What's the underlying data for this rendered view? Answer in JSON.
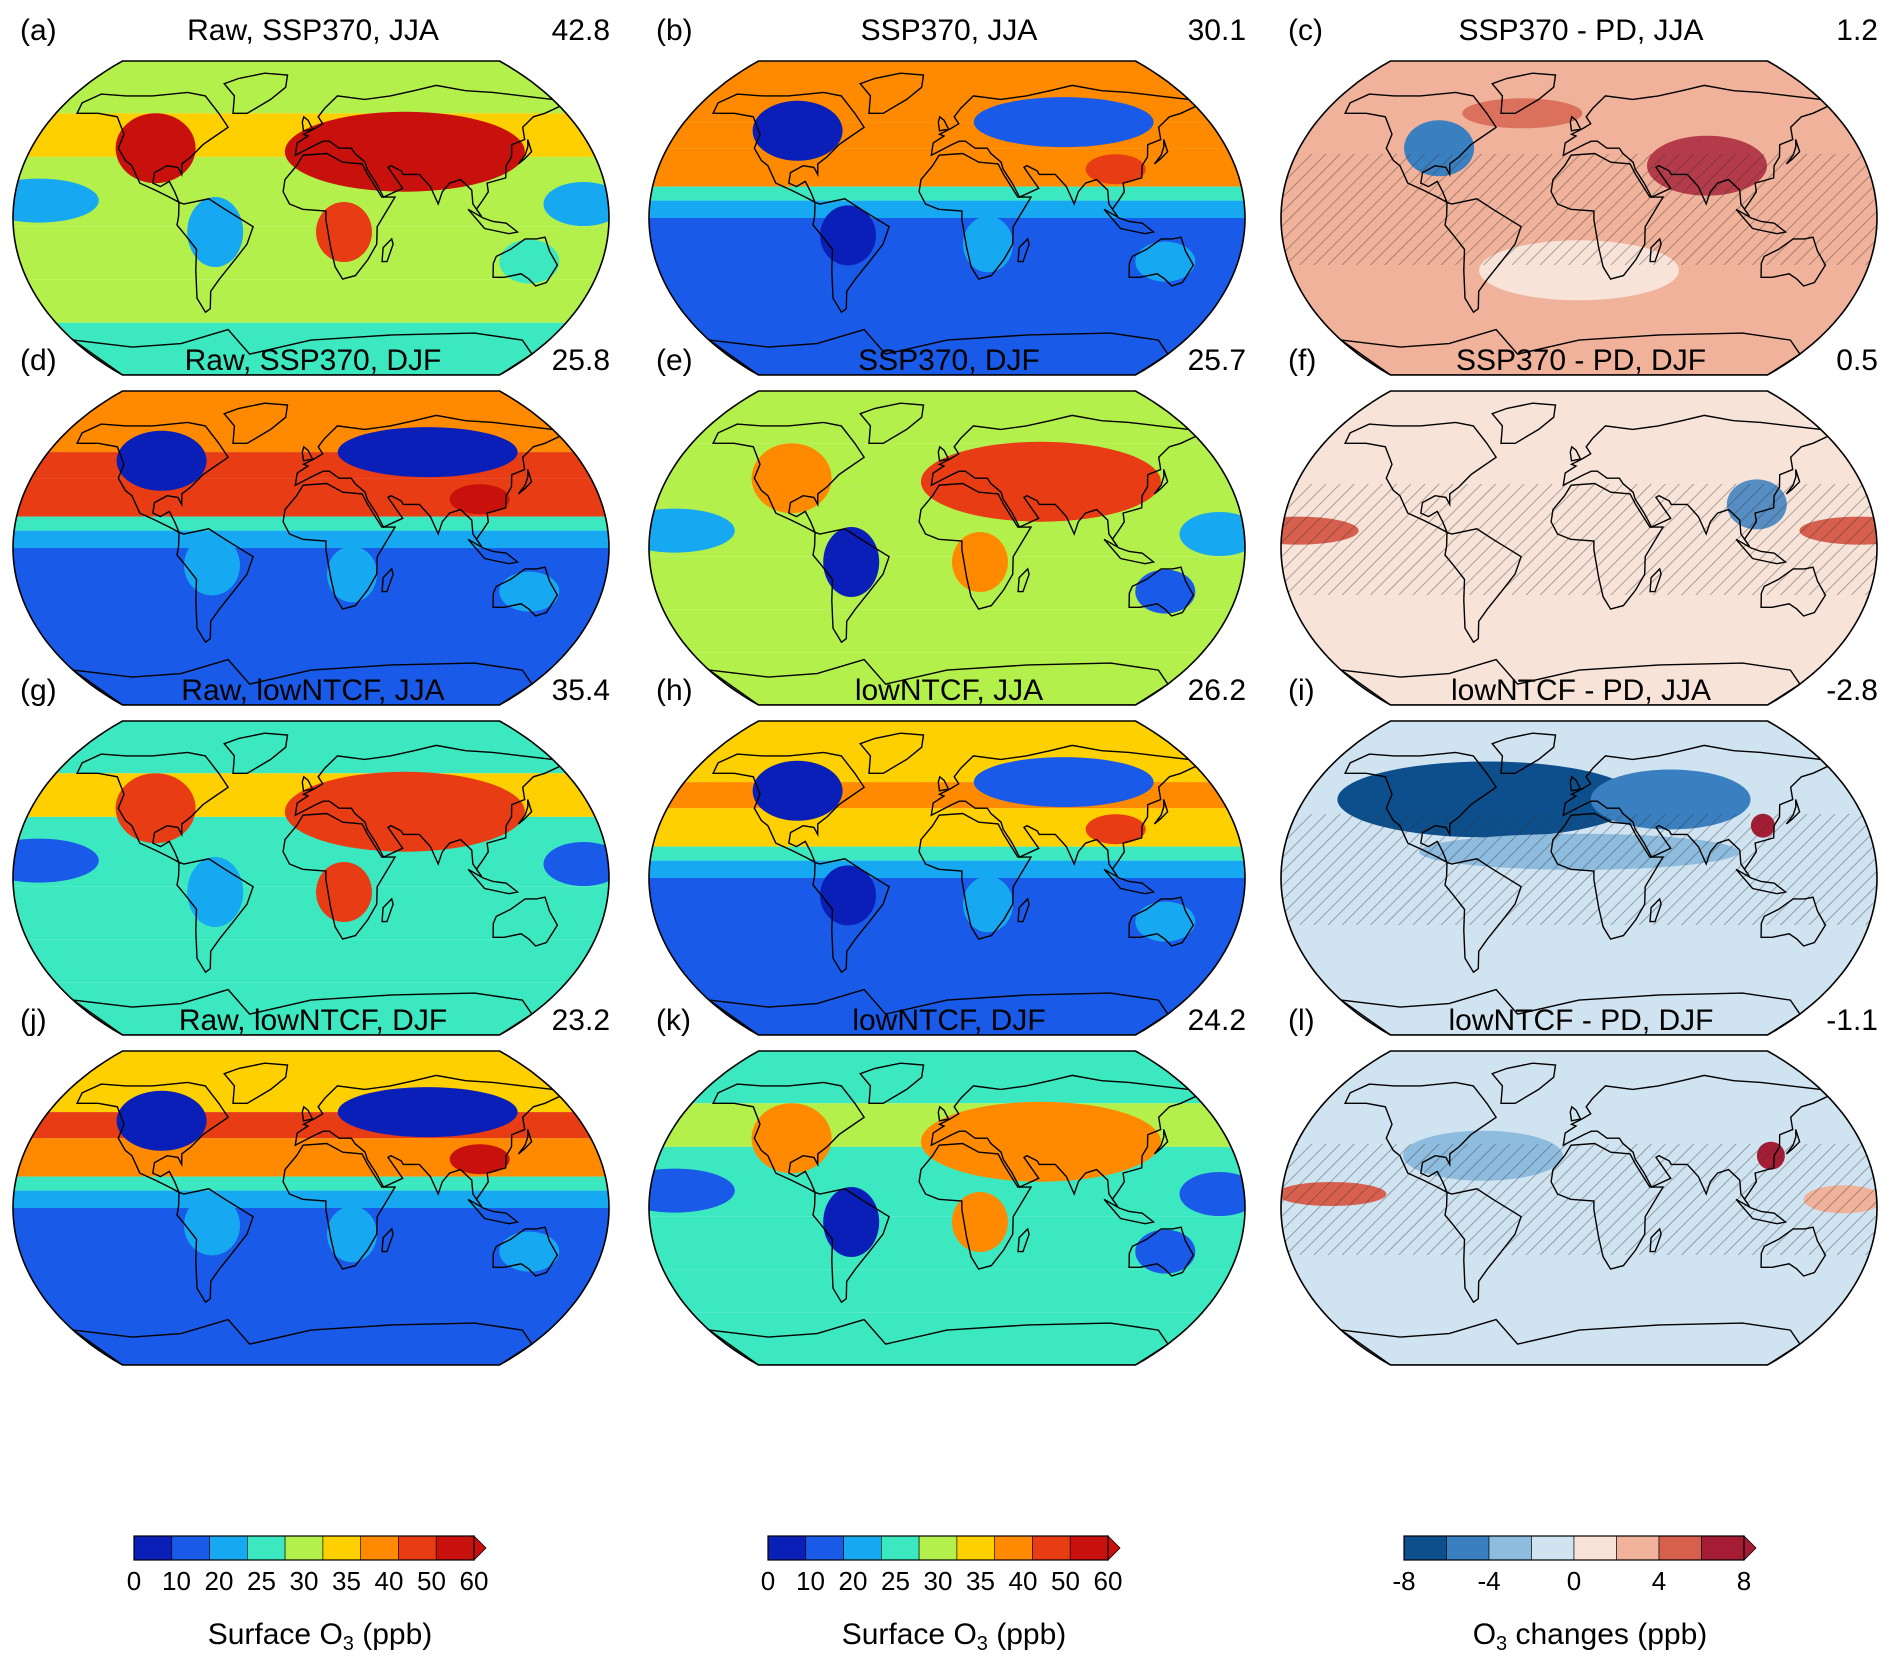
{
  "panels": [
    {
      "label": "(a)",
      "title": "Raw, SSP370, JJA",
      "mean": "42.8",
      "type": "abs"
    },
    {
      "label": "(b)",
      "title": "SSP370, JJA",
      "mean": "30.1",
      "type": "abs"
    },
    {
      "label": "(c)",
      "title": "SSP370 - PD, JJA",
      "mean": "1.2",
      "type": "diff"
    },
    {
      "label": "(d)",
      "title": "Raw, SSP370, DJF",
      "mean": "25.8",
      "type": "abs"
    },
    {
      "label": "(e)",
      "title": "SSP370, DJF",
      "mean": "25.7",
      "type": "abs"
    },
    {
      "label": "(f)",
      "title": "SSP370 - PD, DJF",
      "mean": "0.5",
      "type": "diff"
    },
    {
      "label": "(g)",
      "title": "Raw, lowNTCF, JJA",
      "mean": "35.4",
      "type": "abs"
    },
    {
      "label": "(h)",
      "title": "lowNTCF, JJA",
      "mean": "26.2",
      "type": "abs"
    },
    {
      "label": "(i)",
      "title": "lowNTCF - PD, JJA",
      "mean": "-2.8",
      "type": "diff"
    },
    {
      "label": "(j)",
      "title": "Raw, lowNTCF, DJF",
      "mean": "23.2",
      "type": "abs"
    },
    {
      "label": "(k)",
      "title": "lowNTCF, DJF",
      "mean": "24.2",
      "type": "abs"
    },
    {
      "label": "(l)",
      "title": "lowNTCF - PD, DJF",
      "mean": "-1.1",
      "type": "diff"
    }
  ],
  "colorbars": [
    {
      "label_pre": "Surface O",
      "label_sub": "3",
      "label_post": " (ppb)",
      "ticks": [
        "0",
        "10",
        "20",
        "25",
        "30",
        "35",
        "40",
        "50",
        "60"
      ],
      "colors": [
        "#0a1fb8",
        "#1a5ae8",
        "#16a8f0",
        "#3ce8c0",
        "#b4f04c",
        "#ffd000",
        "#ff8a00",
        "#e83c14",
        "#c8100c"
      ],
      "extend": "max"
    },
    {
      "label_pre": "Surface O",
      "label_sub": "3",
      "label_post": " (ppb)",
      "ticks": [
        "0",
        "10",
        "20",
        "25",
        "30",
        "35",
        "40",
        "50",
        "60"
      ],
      "colors": [
        "#0a1fb8",
        "#1a5ae8",
        "#16a8f0",
        "#3ce8c0",
        "#b4f04c",
        "#ffd000",
        "#ff8a00",
        "#e83c14",
        "#c8100c"
      ],
      "extend": "max"
    },
    {
      "label_pre": "O",
      "label_sub": "3",
      "label_post": " changes (ppb)",
      "ticks": [
        "-8",
        "-4",
        "0",
        "4",
        "8"
      ],
      "colors": [
        "#0d4f8c",
        "#3a7fbf",
        "#8ebcde",
        "#cfe3f1",
        "#f7e3d8",
        "#f0b29a",
        "#d6604d",
        "#a51d34"
      ],
      "extend": "both"
    }
  ]
}
